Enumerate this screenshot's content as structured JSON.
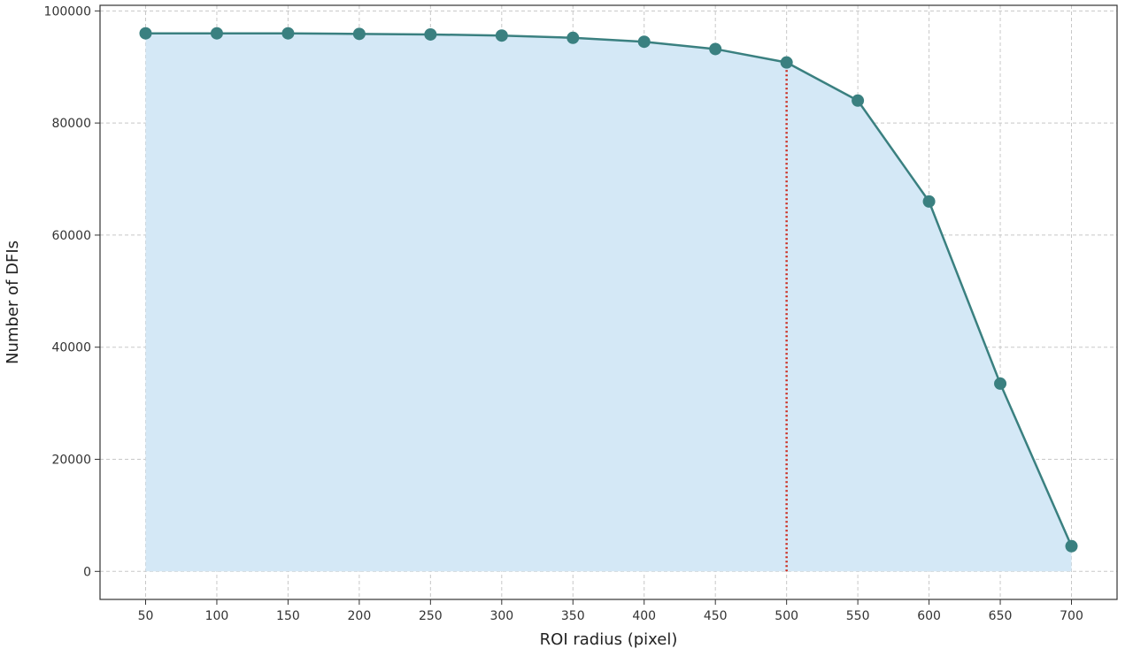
{
  "chart_data": {
    "type": "line",
    "title": "",
    "xlabel": "ROI radius (pixel)",
    "ylabel": "Number of DFIs",
    "x": [
      50,
      100,
      150,
      200,
      250,
      300,
      350,
      400,
      450,
      500,
      550,
      600,
      650,
      700
    ],
    "series": [
      {
        "values": [
          96000,
          96000,
          96000,
          95900,
          95800,
          95600,
          95200,
          94500,
          93200,
          90800,
          84000,
          66000,
          33500,
          4500
        ],
        "color": "#3a8080",
        "marker": "circle",
        "fill_color": "#d4e8f6"
      }
    ],
    "xlim": [
      18,
      732
    ],
    "ylim": [
      -5000,
      101000
    ],
    "x_ticks": [
      "50",
      "100",
      "150",
      "200",
      "250",
      "300",
      "350",
      "400",
      "450",
      "500",
      "550",
      "600",
      "650",
      "700"
    ],
    "y_ticks": [
      "0",
      "20000",
      "40000",
      "60000",
      "80000",
      "100000"
    ],
    "y_tick_values": [
      0,
      20000,
      40000,
      60000,
      80000,
      100000
    ],
    "annotations": [
      {
        "type": "vertical-line",
        "x": 500,
        "y_to": 90800,
        "style": "dotted",
        "color": "#cc2a1d"
      }
    ],
    "grid": true,
    "legend": "none"
  }
}
